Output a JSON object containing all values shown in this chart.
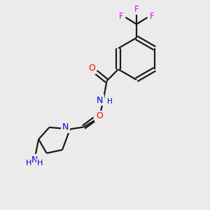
{
  "background_color": "#ebebeb",
  "bond_color": "#1a1a1a",
  "oxygen_color": "#ff0000",
  "nitrogen_color": "#0000cc",
  "fluorine_color": "#ee00ee",
  "carbon_color": "#1a1a1a",
  "line_width": 1.6,
  "dbo": 0.08,
  "figsize": [
    3.0,
    3.0
  ],
  "dpi": 100,
  "xlim": [
    0,
    10
  ],
  "ylim": [
    0,
    10
  ]
}
